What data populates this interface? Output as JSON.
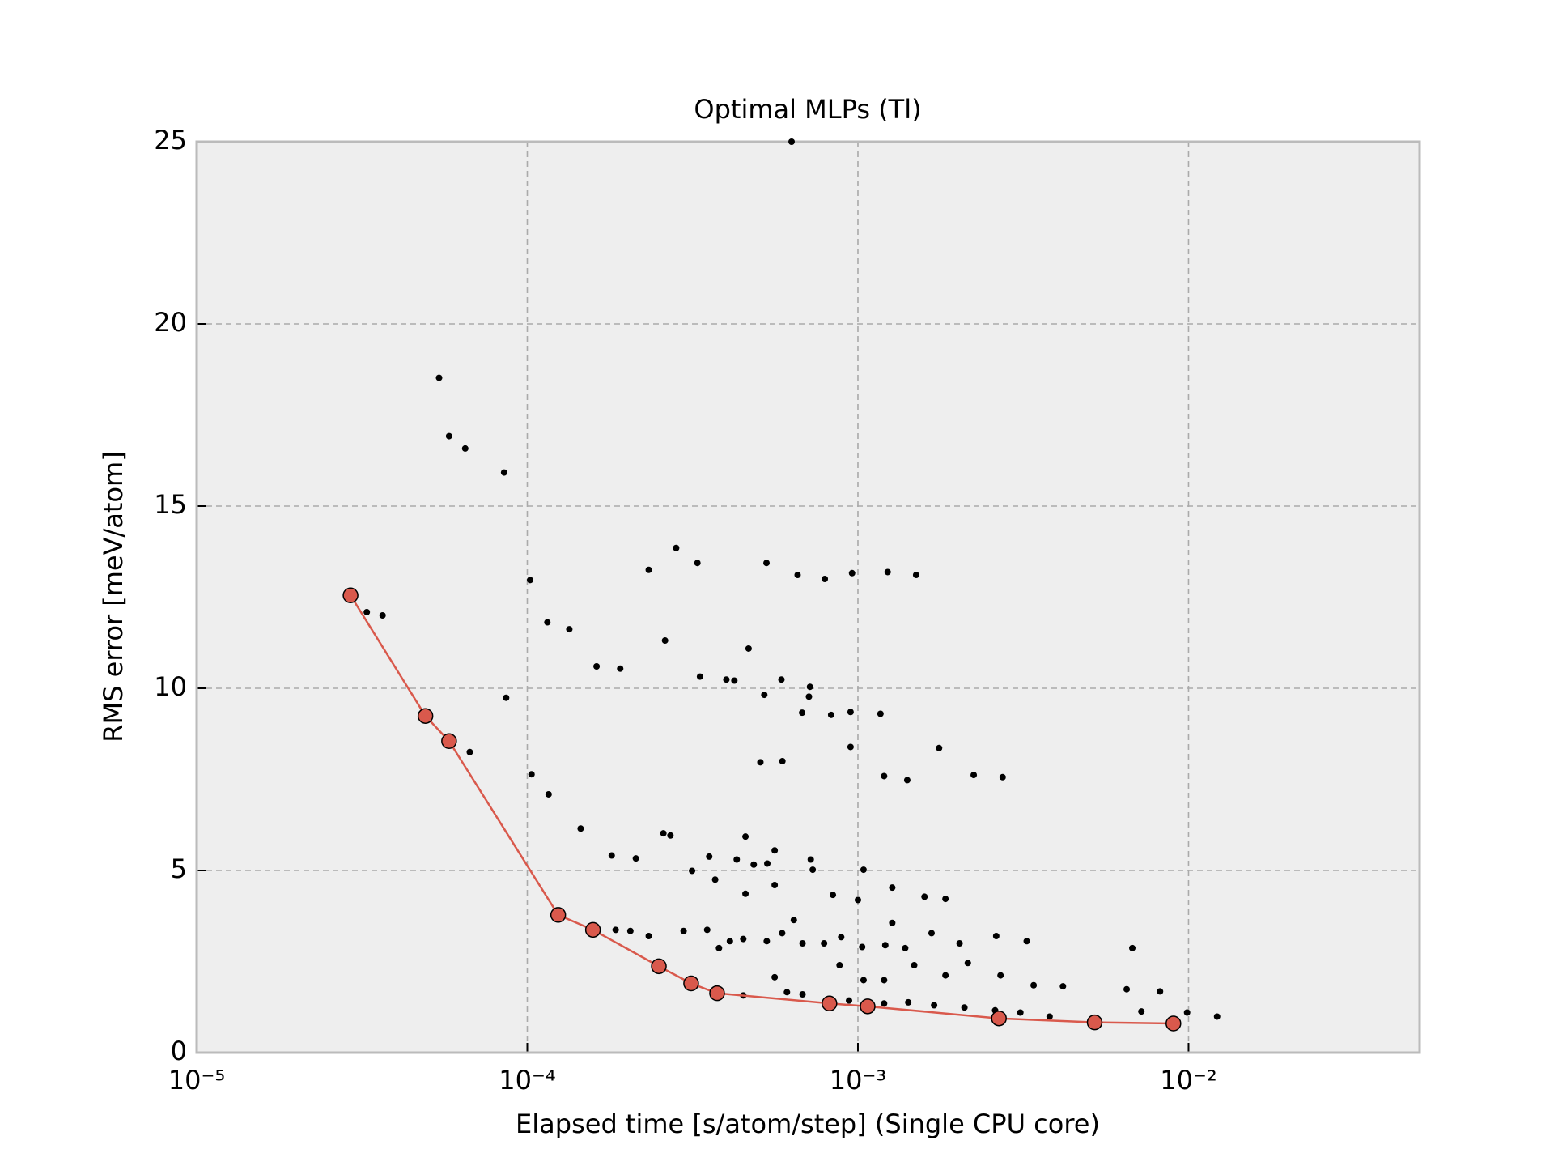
{
  "chart_data": {
    "type": "scatter",
    "title": "Optimal MLPs (Tl)",
    "xlabel": "Elapsed time [s/atom/step] (Single CPU core)",
    "ylabel": "RMS error [meV/atom]",
    "xscale": "log",
    "xlim": [
      1e-05,
      0.05
    ],
    "ylim": [
      0,
      25
    ],
    "xticks": [
      {
        "value": 1e-05,
        "label": "10⁻⁵"
      },
      {
        "value": 0.0001,
        "label": "10⁻⁴"
      },
      {
        "value": 0.001,
        "label": "10⁻³"
      },
      {
        "value": 0.01,
        "label": "10⁻²"
      }
    ],
    "yticks": [
      0,
      5,
      10,
      15,
      20,
      25
    ],
    "grid": true,
    "series": [
      {
        "kind": "points",
        "color": "#000000",
        "x": [
          3.27e-05,
          3.65e-05,
          5.41e-05,
          5.8e-05,
          6.49e-05,
          6.7e-05,
          8.51e-05,
          8.63e-05,
          0.000102,
          0.000103,
          0.000115,
          0.000116,
          0.000134,
          0.000145,
          0.000162,
          0.00018,
          0.000191,
          0.000213,
          0.000233,
          0.000261,
          0.000258,
          0.000271,
          0.000282,
          0.000315,
          0.000327,
          0.000333,
          0.000355,
          0.00037,
          0.0004,
          0.000423,
          0.00043,
          0.000457,
          0.000467,
          0.000484,
          0.000457,
          0.000507,
          0.000521,
          0.000529,
          0.000532,
          0.00056,
          0.000587,
          0.000591,
          0.000657,
          0.000678,
          0.000711,
          0.000716,
          0.00072,
          0.000794,
          0.00083,
          0.00096,
          0.00095,
          0.00095,
          0.00104,
          0.00117,
          0.0012,
          0.00123,
          0.00141,
          0.0015,
          0.00176,
          0.00224,
          0.00274,
          0.00676,
          0.0065,
          0.0072,
          0.0082,
          0.0099,
          0.0122,
          0.00324,
          0.0034,
          0.00417,
          0.0038,
          0.000185,
          0.000205,
          0.000233,
          0.000297,
          0.00035,
          0.00041,
          0.00045,
          0.00053,
          0.00059,
          0.00068,
          0.00079,
          0.00089,
          0.00103,
          0.00121,
          0.00139,
          0.00167,
          0.00203,
          0.00262,
          0.00045,
          0.00061,
          0.00068,
          0.00094,
          0.0012,
          0.00142,
          0.0017,
          0.0021,
          0.0026,
          0.0031,
          0.00056,
          0.00084,
          0.001,
          0.00127,
          0.00159,
          0.00184,
          0.00127,
          0.00148,
          0.00184,
          0.00215,
          0.0027,
          0.00088,
          0.00104,
          0.0012,
          0.00056,
          0.00038,
          0.00064,
          0.00073,
          0.00063
        ],
        "values": [
          12.09,
          12.0,
          18.52,
          16.92,
          16.58,
          8.25,
          15.92,
          9.74,
          12.97,
          7.64,
          11.81,
          7.09,
          11.62,
          6.15,
          10.6,
          5.41,
          10.54,
          5.33,
          13.25,
          11.31,
          6.02,
          5.96,
          13.85,
          4.99,
          13.44,
          10.32,
          5.38,
          4.75,
          10.24,
          10.21,
          5.3,
          5.93,
          11.09,
          5.16,
          4.36,
          7.97,
          9.82,
          13.44,
          5.19,
          5.55,
          10.24,
          8.0,
          13.11,
          9.33,
          9.77,
          10.04,
          5.3,
          13.0,
          9.27,
          13.16,
          9.35,
          8.39,
          5.02,
          9.3,
          7.59,
          13.19,
          7.48,
          13.11,
          8.36,
          7.62,
          7.56,
          2.87,
          1.74,
          1.13,
          1.68,
          1.1,
          0.99,
          3.06,
          1.85,
          1.82,
          0.99,
          3.37,
          3.34,
          3.2,
          3.34,
          3.37,
          3.06,
          3.12,
          3.06,
          3.28,
          3.0,
          3.0,
          3.17,
          2.9,
          2.95,
          2.87,
          3.28,
          3.0,
          3.2,
          1.57,
          1.66,
          1.6,
          1.43,
          1.35,
          1.38,
          1.3,
          1.24,
          1.16,
          1.1,
          4.6,
          4.33,
          4.19,
          4.53,
          4.28,
          4.22,
          3.56,
          2.4,
          2.12,
          2.46,
          2.12,
          2.4,
          1.99,
          1.99,
          2.07,
          2.87,
          3.64,
          5.02,
          25.0
        ]
      },
      {
        "kind": "pareto",
        "color": "#d9594c",
        "x": [
          2.92e-05,
          4.92e-05,
          5.8e-05,
          0.000124,
          0.000158,
          0.00025,
          0.000313,
          0.000375,
          0.00082,
          0.00107,
          0.00267,
          0.0052,
          0.009
        ],
        "values": [
          12.55,
          9.24,
          8.55,
          3.78,
          3.37,
          2.37,
          1.9,
          1.63,
          1.35,
          1.27,
          0.94,
          0.83,
          0.8
        ]
      }
    ]
  }
}
